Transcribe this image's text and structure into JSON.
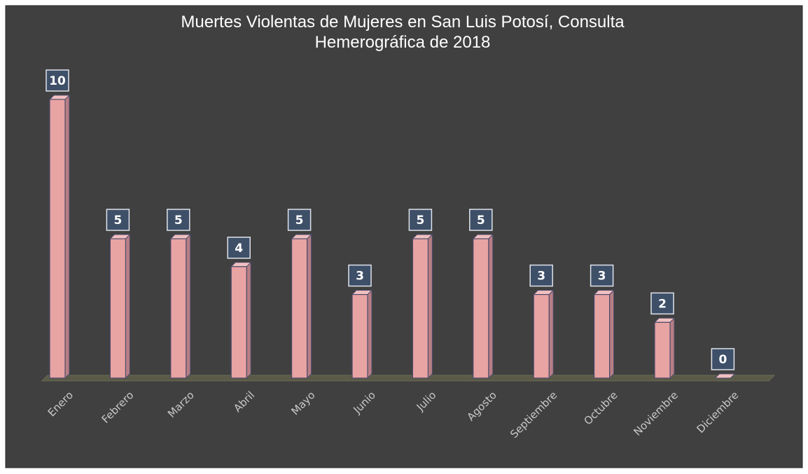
{
  "chart_data": {
    "type": "bar3d",
    "title": "Muertes Violentas de Mujeres en San Luis Potosí, Consulta Hemerográfica de 2018",
    "categories": [
      "Enero",
      "Febrero",
      "Marzo",
      "Abril",
      "Mayo",
      "Junio",
      "Julio",
      "Agosto",
      "Septiembre",
      "Octubre",
      "Noviembre",
      "Diciembre"
    ],
    "values": [
      10,
      5,
      5,
      4,
      5,
      3,
      5,
      5,
      3,
      3,
      2,
      0
    ],
    "color": "#e8a3a3"
  }
}
